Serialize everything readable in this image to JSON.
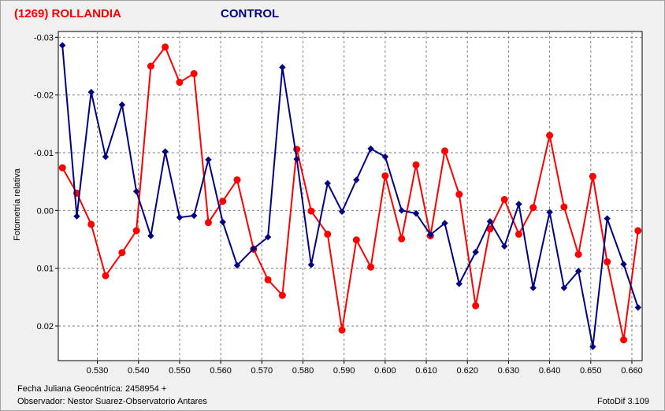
{
  "header": {
    "target_title": "(1269) ROLLANDIA",
    "control_title": "CONTROL"
  },
  "footer": {
    "date_label": "Fecha Juliana Geocéntrica: 2458954 +",
    "observer_label": "Observador: Nestor Suarez-Observatorio Antares",
    "software_label": "FotoDif 3.109"
  },
  "colors": {
    "target": "#ff0000",
    "control": "#000080",
    "plot_bg": "#ffffff",
    "grid": "#808080"
  },
  "chart_data": {
    "type": "line",
    "ylabel": "Fotometría relativa",
    "xlabel": "",
    "xlim": [
      0.5205,
      0.6625
    ],
    "ylim": [
      -0.031,
      0.026
    ],
    "y_inverted": true,
    "grid": true,
    "x_ticks": [
      "0.530",
      "0.540",
      "0.550",
      "0.560",
      "0.570",
      "0.580",
      "0.590",
      "0.600",
      "0.610",
      "0.620",
      "0.630",
      "0.640",
      "0.650",
      "0.660"
    ],
    "y_ticks": [
      "-0.03",
      "-0.02",
      "-0.01",
      "0.00",
      "0.01",
      "0.02"
    ],
    "series": [
      {
        "name": "(1269) ROLLANDIA",
        "color": "#ff0000",
        "marker": "circle",
        "points": [
          [
            0.5215,
            -0.0074
          ],
          [
            0.525,
            -0.003
          ],
          [
            0.5285,
            0.0024
          ],
          [
            0.532,
            0.0113
          ],
          [
            0.536,
            0.0073
          ],
          [
            0.5395,
            0.0035
          ],
          [
            0.543,
            -0.025
          ],
          [
            0.5465,
            -0.0283
          ],
          [
            0.55,
            -0.0222
          ],
          [
            0.5535,
            -0.0237
          ],
          [
            0.557,
            0.0021
          ],
          [
            0.5605,
            -0.0016
          ],
          [
            0.564,
            -0.0053
          ],
          [
            0.568,
            0.0067
          ],
          [
            0.5715,
            0.012
          ],
          [
            0.575,
            0.0147
          ],
          [
            0.5785,
            -0.0106
          ],
          [
            0.582,
            0.0001
          ],
          [
            0.586,
            0.0041
          ],
          [
            0.5895,
            0.0207
          ],
          [
            0.593,
            0.0051
          ],
          [
            0.5965,
            0.0098
          ],
          [
            0.6,
            -0.006
          ],
          [
            0.604,
            0.0049
          ],
          [
            0.6075,
            -0.0079
          ],
          [
            0.611,
            0.0044
          ],
          [
            0.6145,
            -0.0103
          ],
          [
            0.618,
            -0.0028
          ],
          [
            0.622,
            0.0165
          ],
          [
            0.6255,
            0.0032
          ],
          [
            0.629,
            -0.0019
          ],
          [
            0.6325,
            0.0041
          ],
          [
            0.636,
            -0.0005
          ],
          [
            0.64,
            -0.013
          ],
          [
            0.6435,
            -0.0006
          ],
          [
            0.647,
            0.0076
          ],
          [
            0.6505,
            -0.0059
          ],
          [
            0.654,
            0.0089
          ],
          [
            0.658,
            0.0224
          ],
          [
            0.6615,
            0.0035
          ]
        ]
      },
      {
        "name": "CONTROL",
        "color": "#000080",
        "marker": "diamond",
        "points": [
          [
            0.5215,
            -0.0286
          ],
          [
            0.525,
            0.001
          ],
          [
            0.5285,
            -0.0205
          ],
          [
            0.532,
            -0.0093
          ],
          [
            0.536,
            -0.0183
          ],
          [
            0.5395,
            -0.0033
          ],
          [
            0.543,
            0.0044
          ],
          [
            0.5465,
            -0.0102
          ],
          [
            0.55,
            0.0012
          ],
          [
            0.5535,
            0.0009
          ],
          [
            0.557,
            -0.0088
          ],
          [
            0.5605,
            0.002
          ],
          [
            0.564,
            0.0095
          ],
          [
            0.568,
            0.0066
          ],
          [
            0.5715,
            0.0046
          ],
          [
            0.575,
            -0.0248
          ],
          [
            0.5785,
            -0.0089
          ],
          [
            0.582,
            0.0094
          ],
          [
            0.586,
            -0.0047
          ],
          [
            0.5895,
            0.0002
          ],
          [
            0.593,
            -0.0053
          ],
          [
            0.5965,
            -0.0107
          ],
          [
            0.6,
            -0.0093
          ],
          [
            0.604,
            0.0
          ],
          [
            0.6075,
            0.0005
          ],
          [
            0.611,
            0.0042
          ],
          [
            0.6145,
            0.0022
          ],
          [
            0.618,
            0.0127
          ],
          [
            0.622,
            0.0072
          ],
          [
            0.6255,
            0.0019
          ],
          [
            0.629,
            0.0062
          ],
          [
            0.6325,
            -0.0011
          ],
          [
            0.636,
            0.0134
          ],
          [
            0.64,
            0.0003
          ],
          [
            0.6435,
            0.0134
          ],
          [
            0.647,
            0.0105
          ],
          [
            0.6505,
            0.0236
          ],
          [
            0.654,
            0.0014
          ],
          [
            0.658,
            0.0093
          ],
          [
            0.6615,
            0.0168
          ]
        ]
      }
    ]
  }
}
